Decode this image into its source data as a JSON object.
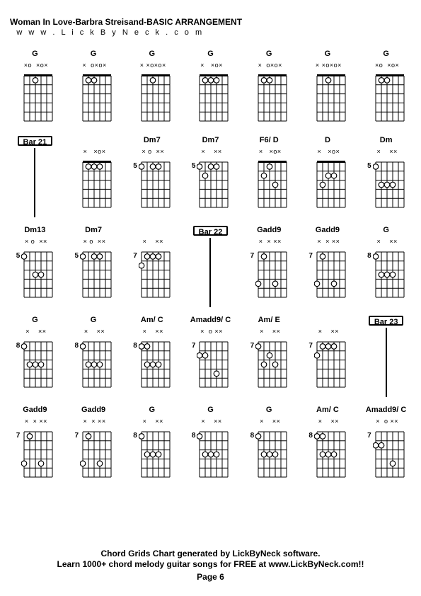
{
  "title": "Woman In Love-Barbra Streisand-BASIC ARRANGEMENT",
  "subtitle": "w w w . L i c k B y N e c k . c o m",
  "footer_line1": "Chord Grids Chart generated by LickByNeck software.",
  "footer_line2": "Learn 1000+ chord melody guitar songs for FREE at www.LickByNeck.com!!",
  "page": "Page 6",
  "grid_color": "#000000",
  "bg_color": "#ffffff",
  "dot_color": "#ffffff",
  "dot_stroke": "#000000",
  "cols": 7,
  "rows": 5,
  "cells": [
    {
      "type": "chord",
      "label": "G",
      "header": " ×o  ×o×",
      "fret": "",
      "dots": [
        [
          1,
          3
        ]
      ]
    },
    {
      "type": "chord",
      "label": "G",
      "header": " ×  o×o×",
      "fret": "",
      "dots": [
        [
          1,
          2
        ],
        [
          1,
          3
        ]
      ]
    },
    {
      "type": "chord",
      "label": "G",
      "header": " × ×o×o×",
      "fret": "",
      "dots": [
        [
          1,
          3
        ]
      ]
    },
    {
      "type": "chord",
      "label": "G",
      "header": " ×   ×o×",
      "fret": "",
      "dots": [
        [
          1,
          2
        ],
        [
          1,
          3
        ],
        [
          1,
          4
        ]
      ]
    },
    {
      "type": "chord",
      "label": "G",
      "header": " ×  o×o×",
      "fret": "",
      "dots": [
        [
          1,
          2
        ],
        [
          1,
          3
        ]
      ]
    },
    {
      "type": "chord",
      "label": "G",
      "header": " × ×o×o×",
      "fret": "",
      "dots": [
        [
          1,
          3
        ]
      ]
    },
    {
      "type": "chord",
      "label": "G",
      "header": " ×o  ×o×",
      "fret": "",
      "dots": [
        [
          1,
          2
        ],
        [
          1,
          3
        ]
      ]
    },
    {
      "type": "bar",
      "label": "Bar 21",
      "boxed": true
    },
    {
      "type": "chord",
      "label": "",
      "header": " ×   ×o×",
      "fret": "",
      "dots": [
        [
          1,
          2
        ],
        [
          1,
          3
        ],
        [
          1,
          4
        ]
      ]
    },
    {
      "type": "chord",
      "label": "Dm7",
      "header": " × o  ××",
      "fret": "5",
      "dots": [
        [
          1,
          1
        ],
        [
          1,
          3
        ],
        [
          1,
          4
        ]
      ]
    },
    {
      "type": "chord",
      "label": "Dm7",
      "header": " ×    ××",
      "fret": "5",
      "dots": [
        [
          1,
          1
        ],
        [
          1,
          3
        ],
        [
          1,
          4
        ],
        [
          2,
          2
        ]
      ]
    },
    {
      "type": "chord",
      "label": "F6/ D",
      "header": " ×   ×o×",
      "fret": "",
      "dots": [
        [
          1,
          3
        ],
        [
          2,
          2
        ],
        [
          3,
          4
        ]
      ]
    },
    {
      "type": "chord",
      "label": "D",
      "header": " ×   ×o×",
      "fret": "",
      "dots": [
        [
          2,
          3
        ],
        [
          2,
          4
        ],
        [
          3,
          2
        ]
      ]
    },
    {
      "type": "chord",
      "label": "Dm",
      "header": " ×    ××",
      "fret": "5",
      "dots": [
        [
          1,
          1
        ],
        [
          3,
          2
        ],
        [
          3,
          3
        ],
        [
          3,
          4
        ]
      ]
    },
    {
      "type": "chord",
      "label": "Dm13",
      "header": " × o  ××",
      "fret": "5",
      "dots": [
        [
          1,
          1
        ],
        [
          3,
          3
        ],
        [
          3,
          4
        ]
      ]
    },
    {
      "type": "chord",
      "label": "Dm7",
      "header": " × o  ××",
      "fret": "5",
      "dots": [
        [
          1,
          1
        ],
        [
          1,
          3
        ],
        [
          1,
          4
        ]
      ]
    },
    {
      "type": "chord",
      "label": "",
      "header": " ×    ××",
      "fret": "7",
      "dots": [
        [
          1,
          2
        ],
        [
          1,
          3
        ],
        [
          1,
          4
        ],
        [
          2,
          1
        ]
      ]
    },
    {
      "type": "bar",
      "label": "Bar 22",
      "boxed": true
    },
    {
      "type": "chord",
      "label": "Gadd9",
      "header": " ×  × ××",
      "fret": "7",
      "dots": [
        [
          1,
          2
        ],
        [
          4,
          1
        ],
        [
          4,
          4
        ]
      ]
    },
    {
      "type": "chord",
      "label": "Gadd9",
      "header": " ×  × ××",
      "fret": "7",
      "dots": [
        [
          1,
          2
        ],
        [
          4,
          1
        ],
        [
          4,
          4
        ]
      ]
    },
    {
      "type": "chord",
      "label": "G",
      "header": " ×    ××",
      "fret": "8",
      "dots": [
        [
          1,
          1
        ],
        [
          3,
          2
        ],
        [
          3,
          3
        ],
        [
          3,
          4
        ]
      ]
    },
    {
      "type": "chord",
      "label": "G",
      "header": " ×    ××",
      "fret": "8",
      "dots": [
        [
          1,
          1
        ],
        [
          3,
          2
        ],
        [
          3,
          3
        ],
        [
          3,
          4
        ]
      ]
    },
    {
      "type": "chord",
      "label": "G",
      "header": " ×    ××",
      "fret": "8",
      "dots": [
        [
          1,
          1
        ],
        [
          3,
          2
        ],
        [
          3,
          3
        ],
        [
          3,
          4
        ]
      ]
    },
    {
      "type": "chord",
      "label": "Am/ C",
      "header": " ×    ××",
      "fret": "8",
      "dots": [
        [
          1,
          1
        ],
        [
          3,
          2
        ],
        [
          3,
          3
        ],
        [
          3,
          4
        ],
        [
          1,
          2
        ]
      ]
    },
    {
      "type": "chord",
      "label": "Amadd9/ C",
      "header": " ×  o ××",
      "fret": "7",
      "dots": [
        [
          2,
          1
        ],
        [
          2,
          2
        ],
        [
          4,
          4
        ]
      ]
    },
    {
      "type": "chord",
      "label": "Am/ E",
      "header": " ×    ××",
      "fret": "7",
      "dots": [
        [
          1,
          1
        ],
        [
          3,
          2
        ],
        [
          2,
          3
        ],
        [
          3,
          4
        ]
      ]
    },
    {
      "type": "chord",
      "label": "",
      "header": " ×    ××",
      "fret": "7",
      "dots": [
        [
          1,
          2
        ],
        [
          1,
          3
        ],
        [
          1,
          4
        ],
        [
          2,
          1
        ]
      ]
    },
    {
      "type": "bar",
      "label": "Bar 23",
      "boxed": true
    },
    {
      "type": "chord",
      "label": "Gadd9",
      "header": " ×  × ××",
      "fret": "7",
      "dots": [
        [
          1,
          2
        ],
        [
          4,
          1
        ],
        [
          4,
          4
        ]
      ]
    },
    {
      "type": "chord",
      "label": "Gadd9",
      "header": " ×  × ××",
      "fret": "7",
      "dots": [
        [
          1,
          2
        ],
        [
          4,
          1
        ],
        [
          4,
          4
        ]
      ]
    },
    {
      "type": "chord",
      "label": "G",
      "header": " ×    ××",
      "fret": "8",
      "dots": [
        [
          1,
          1
        ],
        [
          3,
          2
        ],
        [
          3,
          3
        ],
        [
          3,
          4
        ]
      ]
    },
    {
      "type": "chord",
      "label": "G",
      "header": " ×    ××",
      "fret": "8",
      "dots": [
        [
          1,
          1
        ],
        [
          3,
          2
        ],
        [
          3,
          3
        ],
        [
          3,
          4
        ]
      ]
    },
    {
      "type": "chord",
      "label": "G",
      "header": " ×    ××",
      "fret": "8",
      "dots": [
        [
          1,
          1
        ],
        [
          3,
          2
        ],
        [
          3,
          3
        ],
        [
          3,
          4
        ]
      ]
    },
    {
      "type": "chord",
      "label": "Am/ C",
      "header": " ×    ××",
      "fret": "8",
      "dots": [
        [
          1,
          1
        ],
        [
          3,
          2
        ],
        [
          3,
          3
        ],
        [
          3,
          4
        ],
        [
          1,
          2
        ]
      ]
    },
    {
      "type": "chord",
      "label": "Amadd9/ C",
      "header": " ×  o ××",
      "fret": "7",
      "dots": [
        [
          2,
          1
        ],
        [
          2,
          2
        ],
        [
          4,
          4
        ]
      ]
    }
  ]
}
